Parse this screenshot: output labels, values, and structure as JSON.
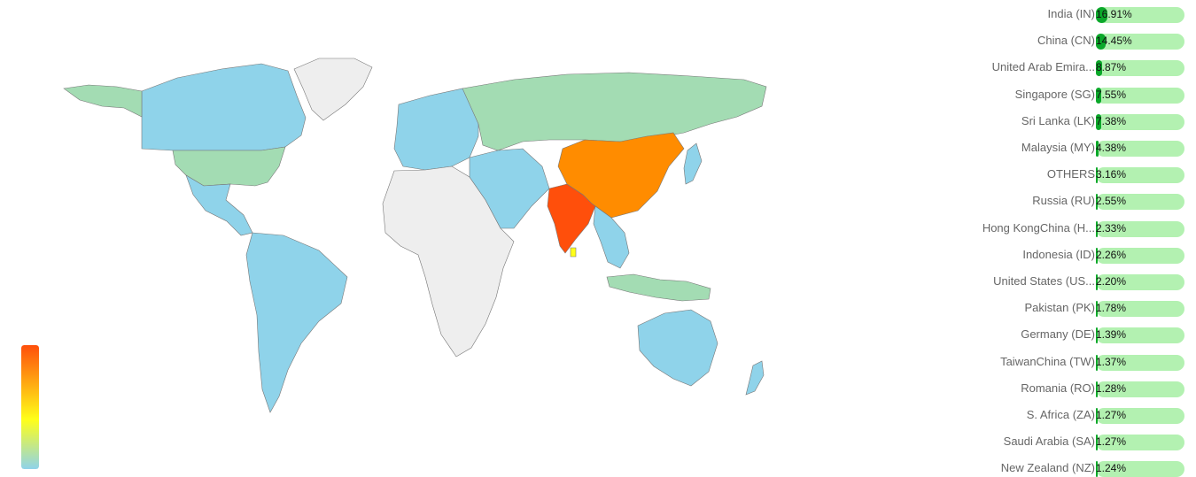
{
  "colors": {
    "low": "#8fd3ea",
    "mid_low": "#a3dcb3",
    "mid": "#ffff19",
    "high": "#ff8c00",
    "max": "#ff4f0b",
    "none": "#eeeeee",
    "border": "#777777",
    "bar_track": "#b3f1b1",
    "bar_fill": "#0ba82a"
  },
  "ranking": [
    {
      "label": "India (IN)",
      "value": "16.91%",
      "pct": 16.91
    },
    {
      "label": "China (CN)",
      "value": "14.45%",
      "pct": 14.45
    },
    {
      "label": "United Arab Emira...",
      "value": "8.87%",
      "pct": 8.87
    },
    {
      "label": "Singapore (SG)",
      "value": "7.55%",
      "pct": 7.55
    },
    {
      "label": "Sri Lanka (LK)",
      "value": "7.38%",
      "pct": 7.38
    },
    {
      "label": "Malaysia (MY)",
      "value": "4.38%",
      "pct": 4.38
    },
    {
      "label": "OTHERS",
      "value": "3.16%",
      "pct": 3.16
    },
    {
      "label": "Russia (RU)",
      "value": "2.55%",
      "pct": 2.55
    },
    {
      "label": "Hong KongChina (H...",
      "value": "2.33%",
      "pct": 2.33
    },
    {
      "label": "Indonesia (ID)",
      "value": "2.26%",
      "pct": 2.26
    },
    {
      "label": "United States (US...",
      "value": "2.20%",
      "pct": 2.2
    },
    {
      "label": "Pakistan (PK)",
      "value": "1.78%",
      "pct": 1.78
    },
    {
      "label": "Germany (DE)",
      "value": "1.39%",
      "pct": 1.39
    },
    {
      "label": "TaiwanChina (TW)",
      "value": "1.37%",
      "pct": 1.37
    },
    {
      "label": "Romania (RO)",
      "value": "1.28%",
      "pct": 1.28
    },
    {
      "label": "S. Africa (ZA)",
      "value": "1.27%",
      "pct": 1.27
    },
    {
      "label": "Saudi Arabia (SA)",
      "value": "1.27%",
      "pct": 1.27
    },
    {
      "label": "New Zealand (NZ)",
      "value": "1.24%",
      "pct": 1.24
    }
  ],
  "regions": [
    {
      "name": "greenland",
      "color": "none"
    },
    {
      "name": "canada",
      "color": "low"
    },
    {
      "name": "alaska",
      "color": "mid_low"
    },
    {
      "name": "usa",
      "color": "mid_low"
    },
    {
      "name": "mexico",
      "color": "low"
    },
    {
      "name": "south-america",
      "color": "low"
    },
    {
      "name": "europe",
      "color": "low"
    },
    {
      "name": "russia",
      "color": "mid_low"
    },
    {
      "name": "africa",
      "color": "none"
    },
    {
      "name": "middle-east",
      "color": "low"
    },
    {
      "name": "india",
      "color": "max"
    },
    {
      "name": "china",
      "color": "high"
    },
    {
      "name": "southeast-asia",
      "color": "low"
    },
    {
      "name": "indonesia",
      "color": "mid_low"
    },
    {
      "name": "australia",
      "color": "low"
    },
    {
      "name": "new-zealand",
      "color": "low"
    },
    {
      "name": "sri-lanka",
      "color": "mid"
    },
    {
      "name": "japan",
      "color": "low"
    }
  ]
}
